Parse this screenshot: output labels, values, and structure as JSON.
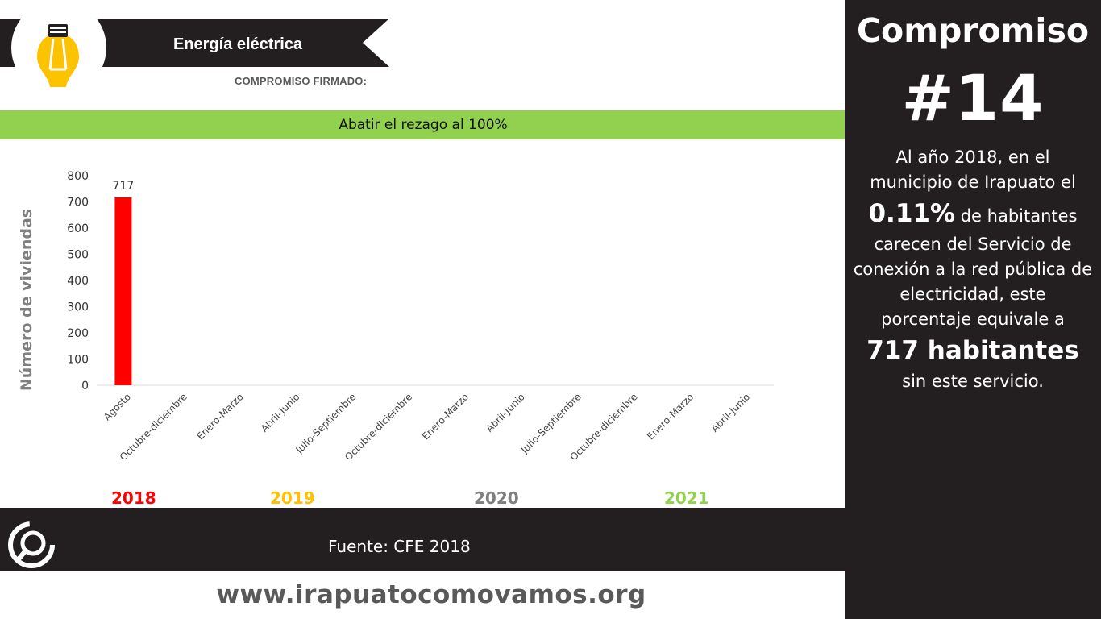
{
  "header": {
    "title": "Energía eléctrica",
    "subtitle": "COMPROMISO FIRMADO:",
    "goal": "Abatir el rezago al 100%",
    "icon": "lightbulb-icon"
  },
  "colors": {
    "banner": "#231f20",
    "green_band": "#92d050",
    "bar": "#ff0000",
    "bulb": "#fdc200"
  },
  "chart_data": {
    "type": "bar",
    "ylabel": "Número de viviendas",
    "xlabel": "",
    "ylim": [
      0,
      800
    ],
    "yticks": [
      "0",
      "100",
      "200",
      "300",
      "400",
      "500",
      "600",
      "700",
      "800"
    ],
    "categories": [
      "Agosto",
      "Octubre-diciembre",
      "Enero-Marzo",
      "Abril-Junio",
      "Julio-Septiembre",
      "Octubre-diciembre",
      "Enero-Marzo",
      "Abril-Junio",
      "Julio-Septiembre",
      "Octubre-diciembre",
      "Enero-Marzo",
      "Abril-Junio"
    ],
    "values": [
      717,
      null,
      null,
      null,
      null,
      null,
      null,
      null,
      null,
      null,
      null,
      null
    ],
    "data_labels": [
      "717"
    ],
    "grid": false,
    "year_groups": [
      {
        "label": "2018",
        "color": "#ff0000"
      },
      {
        "label": "2019",
        "color": "#ffc000"
      },
      {
        "label": "2020",
        "color": "#7f7f7f"
      },
      {
        "label": "2021",
        "color": "#92d050"
      }
    ]
  },
  "footer": {
    "source": "Fuente: CFE 2018",
    "website": "www.irapuatocomovamos.org",
    "logo": "como-vamos-logo-icon"
  },
  "panel": {
    "title": "Compromiso",
    "number": "#14",
    "text1": "Al año 2018, en el municipio de Irapuato el",
    "percent": "0.11%",
    "text2": "de habitantes",
    "text3": "carecen del Servicio de conexión a la red pública de electricidad, este porcentaje equivale a",
    "habitantes": "717 habitantes",
    "text4": "sin este servicio."
  }
}
